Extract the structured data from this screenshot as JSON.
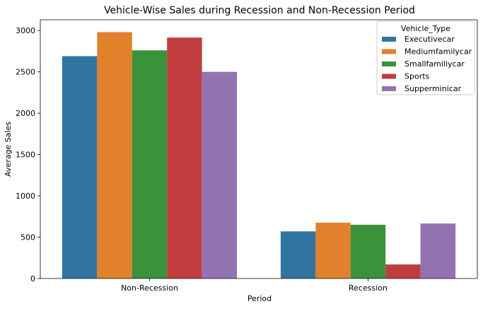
{
  "chart_data": {
    "type": "bar",
    "title": "Vehicle-Wise Sales during Recession and Non-Recession Period",
    "xlabel": "Period",
    "ylabel": "Average Sales",
    "categories": [
      "Non-Recession",
      "Recession"
    ],
    "ylim": [
      0,
      3130
    ],
    "yticks": [
      0,
      500,
      1000,
      1500,
      2000,
      2500,
      3000
    ],
    "grid": false,
    "legend": {
      "title": "Vehicle_Type",
      "placement": "top-right"
    },
    "series": [
      {
        "name": "Executivecar",
        "color": "#3274a1",
        "values": [
          2690,
          570
        ]
      },
      {
        "name": "Mediumfamilycar",
        "color": "#e1812c",
        "values": [
          2980,
          675
        ]
      },
      {
        "name": "Smallfamiliycar",
        "color": "#3a923a",
        "values": [
          2760,
          650
        ]
      },
      {
        "name": "Sports",
        "color": "#c03d3e",
        "values": [
          2915,
          170
        ]
      },
      {
        "name": "Supperminicar",
        "color": "#9372b2",
        "values": [
          2500,
          665
        ]
      }
    ]
  }
}
